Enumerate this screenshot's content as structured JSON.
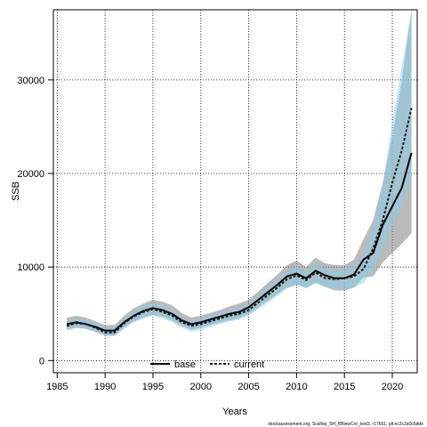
{
  "chart_data": {
    "type": "line",
    "title": "",
    "xlabel": "Years",
    "ylabel": "SSB",
    "xlim": [
      1984.6,
      2022.6
    ],
    "ylim": [
      -1300,
      37500
    ],
    "x_ticks": [
      1985,
      1990,
      1995,
      2000,
      2005,
      2010,
      2015,
      2020
    ],
    "y_ticks": [
      0,
      10000,
      20000,
      30000
    ],
    "grid": true,
    "legend_position": "bottom-center",
    "x": [
      1986,
      1987,
      1988,
      1989,
      1990,
      1991,
      1992,
      1993,
      1994,
      1995,
      1996,
      1997,
      1998,
      1999,
      2000,
      2001,
      2002,
      2003,
      2004,
      2005,
      2006,
      2007,
      2008,
      2009,
      2010,
      2011,
      2012,
      2013,
      2014,
      2015,
      2016,
      2017,
      2018,
      2019,
      2020,
      2021,
      2022
    ],
    "series": [
      {
        "name": "base",
        "line_color": "#000000",
        "band_color": "#8c8c8c",
        "values": [
          3900,
          4100,
          3900,
          3600,
          3200,
          3200,
          4100,
          4800,
          5300,
          5600,
          5400,
          5000,
          4300,
          3900,
          4100,
          4400,
          4700,
          5000,
          5200,
          5700,
          6500,
          7300,
          8100,
          9000,
          9300,
          8800,
          9600,
          9100,
          8800,
          8800,
          9200,
          10800,
          11500,
          14500,
          16500,
          18500,
          22200
        ],
        "lower": [
          3300,
          3500,
          3400,
          3100,
          2700,
          2700,
          3500,
          4200,
          4600,
          4900,
          4700,
          4300,
          3700,
          3300,
          3500,
          3800,
          4100,
          4300,
          4500,
          5000,
          5700,
          6400,
          7100,
          7800,
          8100,
          7800,
          8300,
          7900,
          7500,
          7500,
          7800,
          8900,
          9000,
          10500,
          11500,
          12500,
          13600
        ],
        "upper": [
          4600,
          4800,
          4600,
          4200,
          3800,
          3800,
          4800,
          5600,
          6100,
          6500,
          6300,
          5900,
          5100,
          4600,
          4800,
          5100,
          5400,
          5800,
          6100,
          6500,
          7400,
          8300,
          9200,
          10200,
          10700,
          10000,
          11000,
          10400,
          10200,
          10200,
          10800,
          13000,
          15000,
          19000,
          24000,
          30000,
          37500
        ]
      },
      {
        "name": "current",
        "line_color": "#1a1a1a",
        "band_color": "#87ceeb",
        "values": [
          3700,
          4000,
          3900,
          3500,
          3000,
          3000,
          4000,
          4700,
          5200,
          5500,
          5200,
          4800,
          4100,
          3700,
          3900,
          4200,
          4500,
          4800,
          5000,
          5400,
          6200,
          7000,
          7800,
          8700,
          9100,
          8600,
          9400,
          8800,
          8700,
          8800,
          9000,
          9800,
          12000,
          15000,
          19000,
          22500,
          27000
        ],
        "lower": [
          3200,
          3500,
          3400,
          3000,
          2600,
          2600,
          3400,
          4100,
          4500,
          4800,
          4500,
          4100,
          3500,
          3100,
          3300,
          3600,
          3900,
          4200,
          4400,
          4800,
          5500,
          6200,
          6900,
          7700,
          8100,
          7700,
          8300,
          7800,
          7600,
          7600,
          7800,
          8300,
          9700,
          11800,
          14500,
          16500,
          19000
        ],
        "upper": [
          4200,
          4500,
          4400,
          4000,
          3500,
          3500,
          4500,
          5300,
          5900,
          6200,
          5900,
          5400,
          4700,
          4200,
          4500,
          4800,
          5100,
          5400,
          5600,
          6000,
          6900,
          7800,
          8700,
          9700,
          10100,
          9600,
          10400,
          9800,
          9700,
          9800,
          10200,
          11300,
          14300,
          19000,
          25500,
          31500,
          37500
        ]
      }
    ]
  },
  "watermark": "stockassessment.org, Scallop_SH_f8NewCor_test3, r17661, git:ec2c2a0c6dde"
}
